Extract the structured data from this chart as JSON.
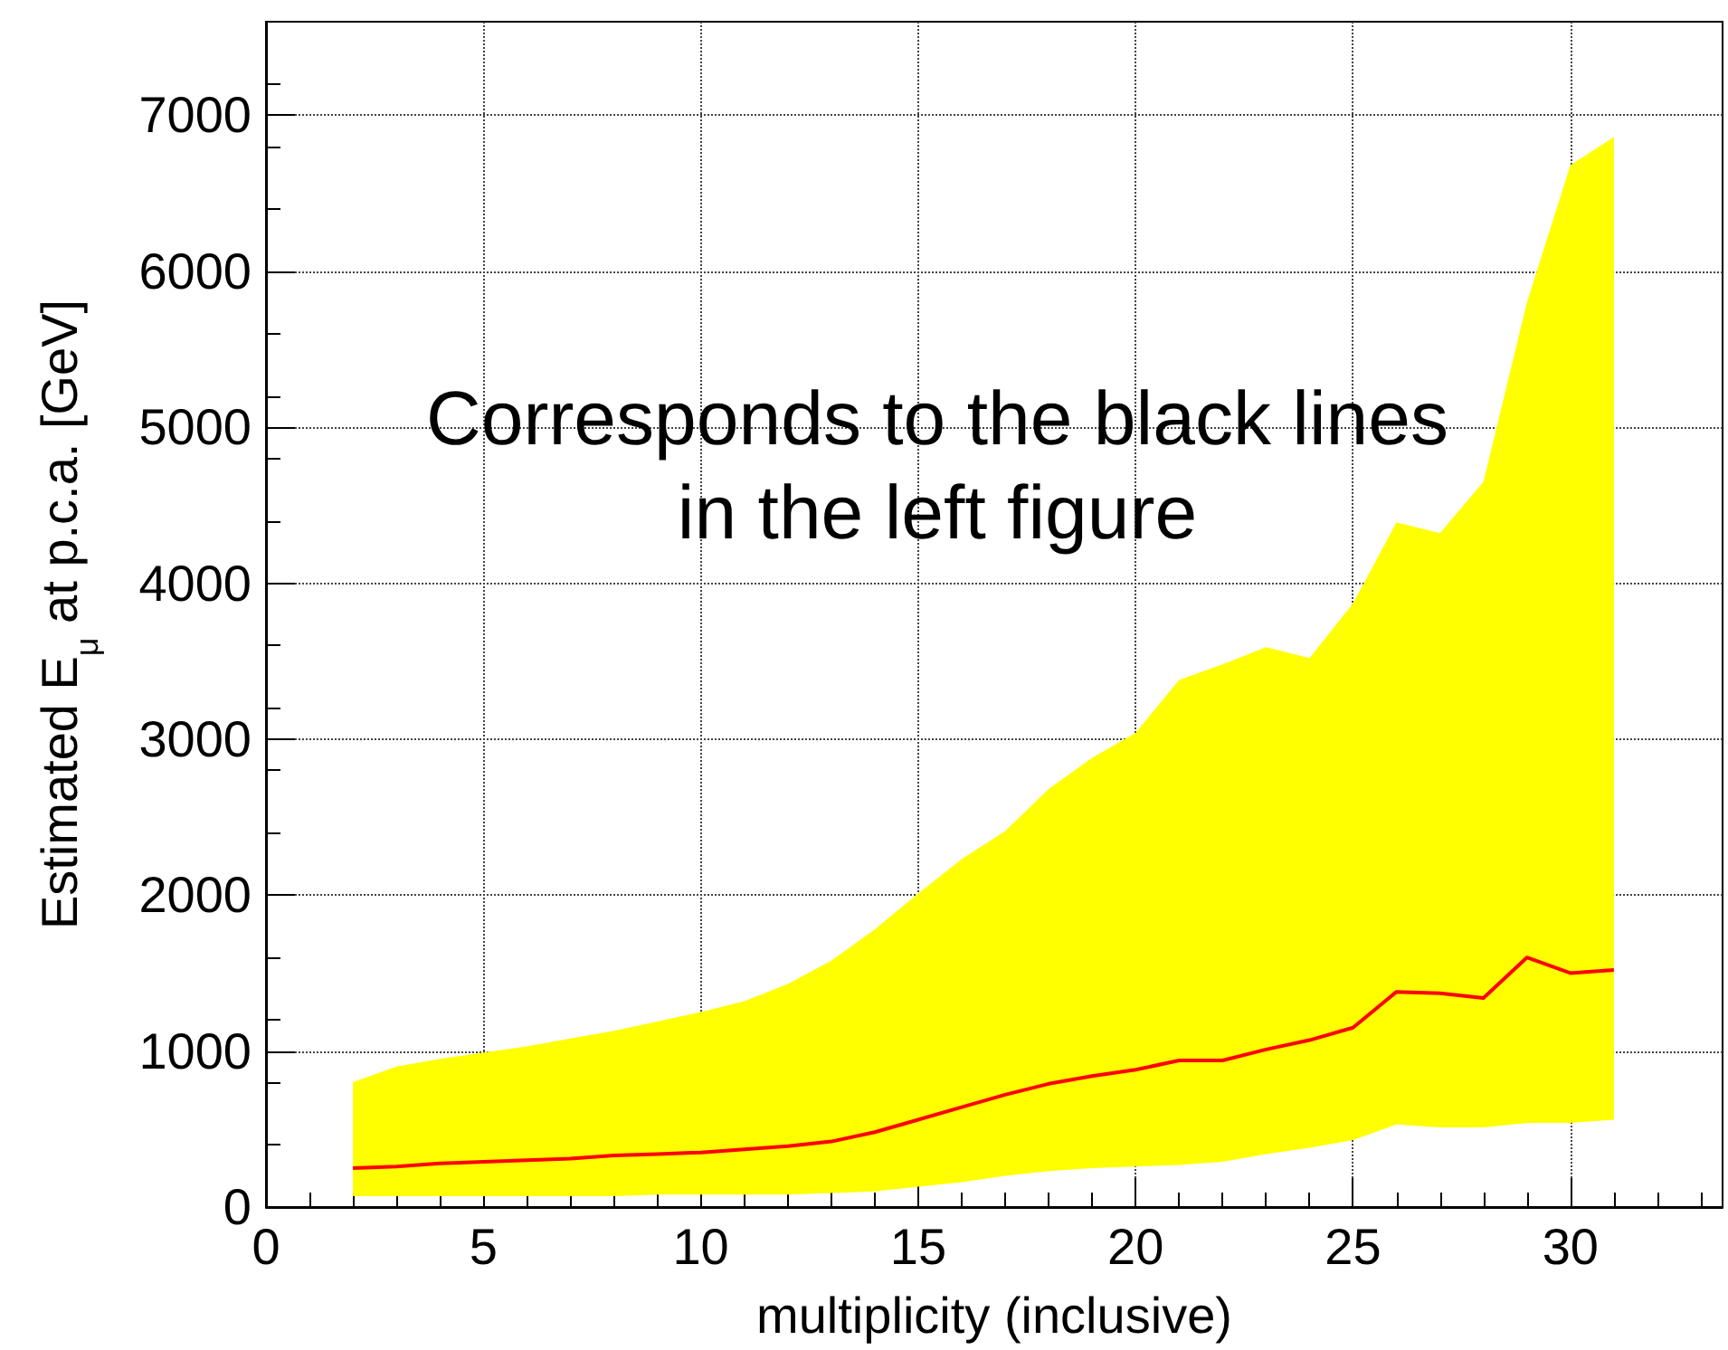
{
  "chart_data": {
    "type": "line",
    "xlabel": "multiplicity (inclusive)",
    "ylabel": "Estimated E$_{μ}$ at p.c.a. [GeV]",
    "annotations": [
      "Corresponds to the black lines\nin the left figure"
    ],
    "x": [
      2,
      3,
      4,
      5,
      6,
      7,
      8,
      9,
      10,
      11,
      12,
      13,
      14,
      15,
      16,
      17,
      18,
      19,
      20,
      21,
      22,
      23,
      24,
      25,
      26,
      27,
      28,
      29,
      30,
      31
    ],
    "series": [
      {
        "color": "#ff0000",
        "values": [
          250,
          260,
          280,
          290,
          300,
          310,
          330,
          340,
          350,
          370,
          390,
          420,
          480,
          560,
          640,
          720,
          790,
          840,
          880,
          940,
          940,
          1010,
          1070,
          1150,
          1380,
          1370,
          1340,
          1600,
          1500,
          1520
        ],
        "lower": [
          70,
          70,
          70,
          70,
          70,
          70,
          70,
          80,
          80,
          80,
          80,
          90,
          100,
          130,
          160,
          200,
          230,
          250,
          260,
          270,
          290,
          340,
          380,
          430,
          530,
          510,
          510,
          540,
          540,
          560
        ],
        "upper": [
          800,
          900,
          950,
          990,
          1030,
          1080,
          1130,
          1190,
          1250,
          1320,
          1430,
          1580,
          1780,
          2010,
          2230,
          2410,
          2680,
          2880,
          3040,
          3380,
          3480,
          3590,
          3520,
          3870,
          4390,
          4320,
          4650,
          5800,
          6680,
          6860
        ]
      }
    ],
    "xlim": [
      0,
      33.5
    ],
    "xticks": [
      0,
      5,
      10,
      15,
      20,
      25,
      30
    ],
    "ylim": [
      0,
      7600
    ],
    "yticks": [
      0,
      1000,
      2000,
      3000,
      4000,
      5000,
      6000,
      7000
    ],
    "grid": true,
    "marker": "none",
    "line_style": "solid"
  }
}
